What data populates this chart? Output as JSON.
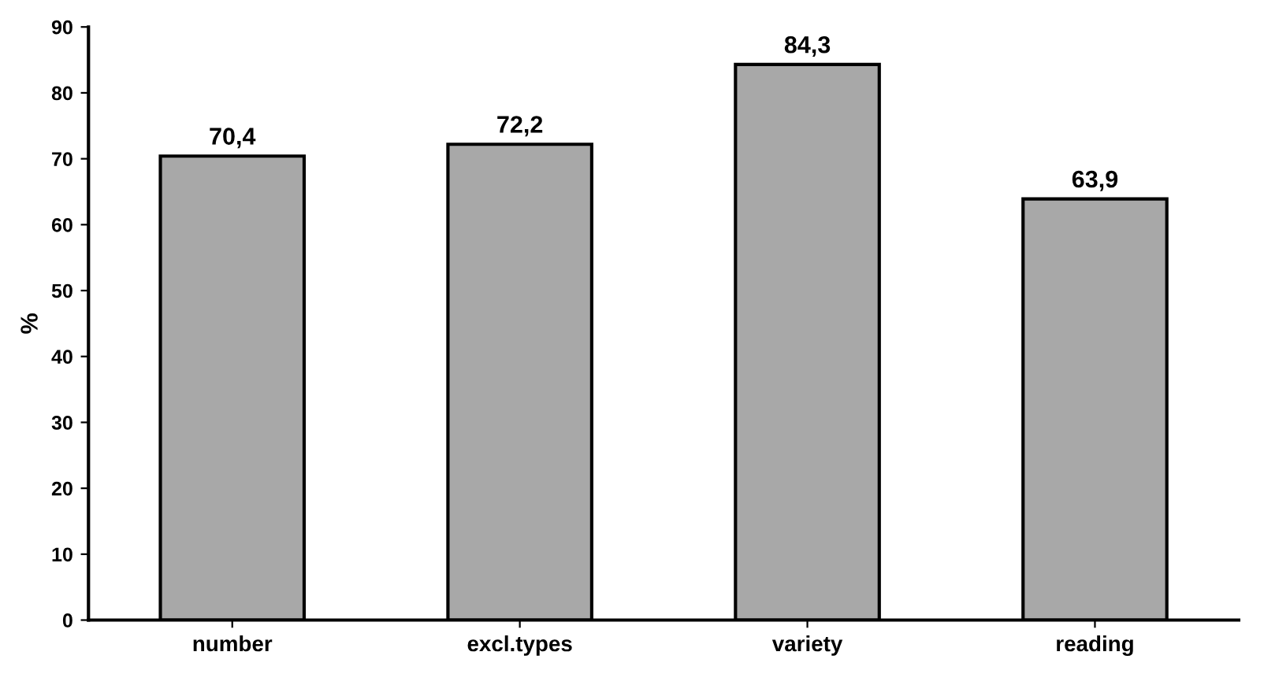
{
  "chart_data": {
    "type": "bar",
    "ylabel": "%",
    "categories": [
      "number",
      "excl.types",
      "variety",
      "reading"
    ],
    "values": [
      70.4,
      72.2,
      84.3,
      63.9
    ],
    "value_labels": [
      "70,4",
      "72,2",
      "84,3",
      "63,9"
    ],
    "color": "#a8a8a8",
    "ylim": [
      0,
      90
    ],
    "yticks": [
      0,
      10,
      20,
      30,
      40,
      50,
      60,
      70,
      80,
      90
    ],
    "grid": false,
    "legend": false
  }
}
